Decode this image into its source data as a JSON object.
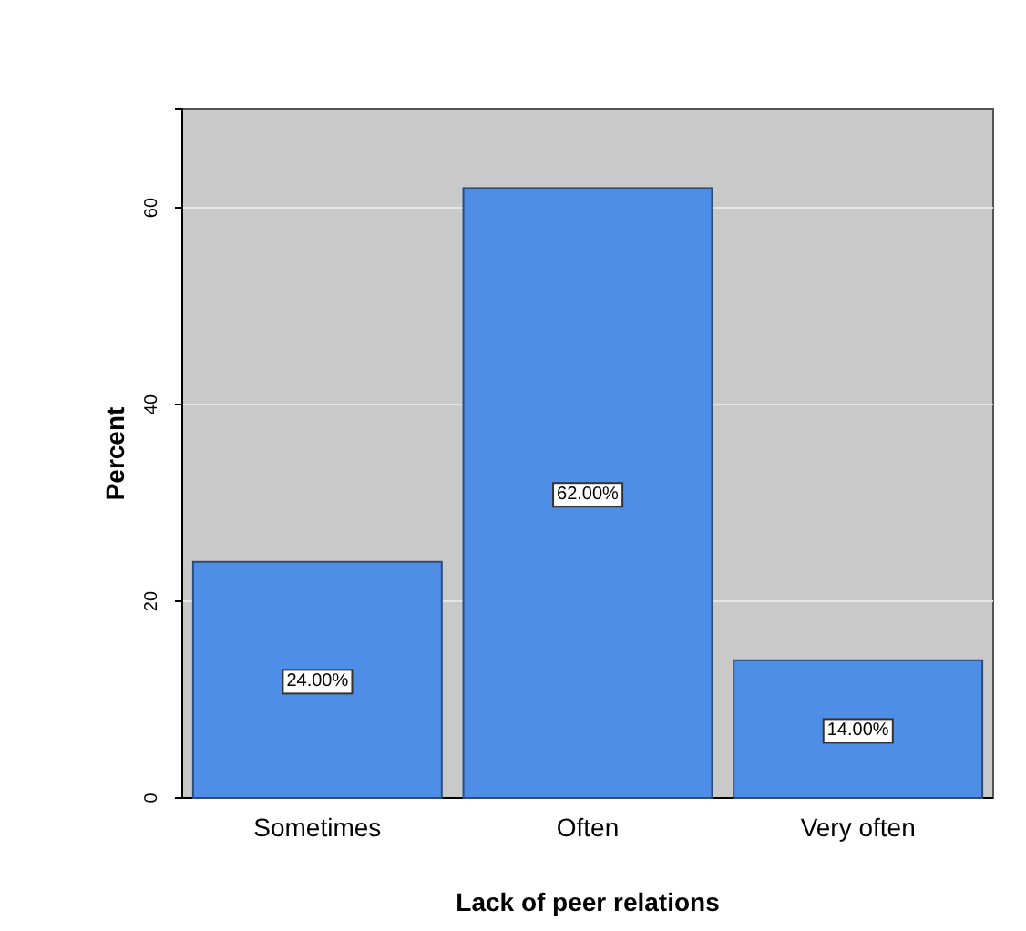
{
  "chart_data": {
    "type": "bar",
    "xlabel": "Lack of peer relations",
    "ylabel": "Percent",
    "categories": [
      "Sometimes",
      "Often",
      "Very often"
    ],
    "values": [
      24,
      62,
      14
    ],
    "color": "#4f8ee6",
    "value_labels": [
      "24.00%",
      "62.00%",
      "14.00%"
    ],
    "ylim": [
      0,
      70
    ],
    "yticks": [
      0,
      20,
      40,
      60
    ],
    "grid": "y"
  }
}
